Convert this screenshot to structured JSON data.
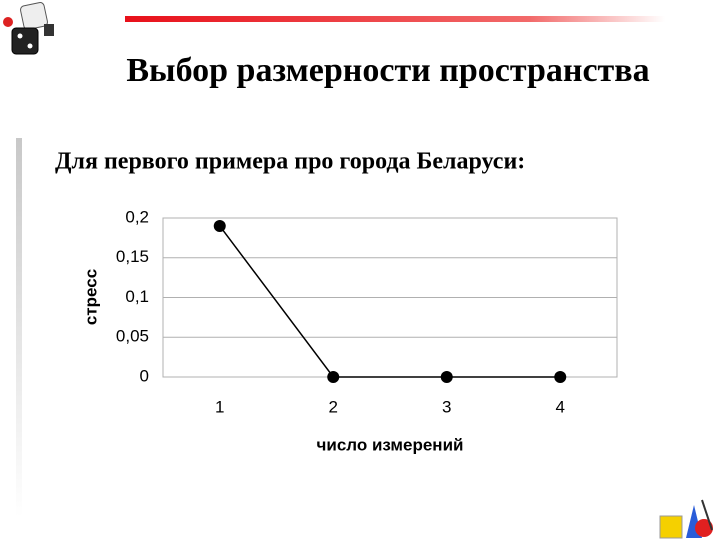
{
  "slide": {
    "title": "Выбор размерности пространства",
    "subtitle": "Для первого примера про города Беларуси:"
  },
  "chart_data": {
    "type": "line",
    "x_label": "число измерений",
    "y_label": "стресс",
    "categories": [
      "1",
      "2",
      "3",
      "4"
    ],
    "values": [
      0.19,
      0,
      0,
      0
    ],
    "color": "#000000",
    "ylim": [
      0,
      0.2
    ],
    "yticks": [
      0,
      {
        "value": 0.05,
        "label": "0,05"
      },
      {
        "value": 0.1,
        "label": "0,1"
      },
      {
        "value": 0.15,
        "label": "0,15"
      },
      {
        "value": 0.2,
        "label": "0,2"
      }
    ],
    "grid": true
  }
}
